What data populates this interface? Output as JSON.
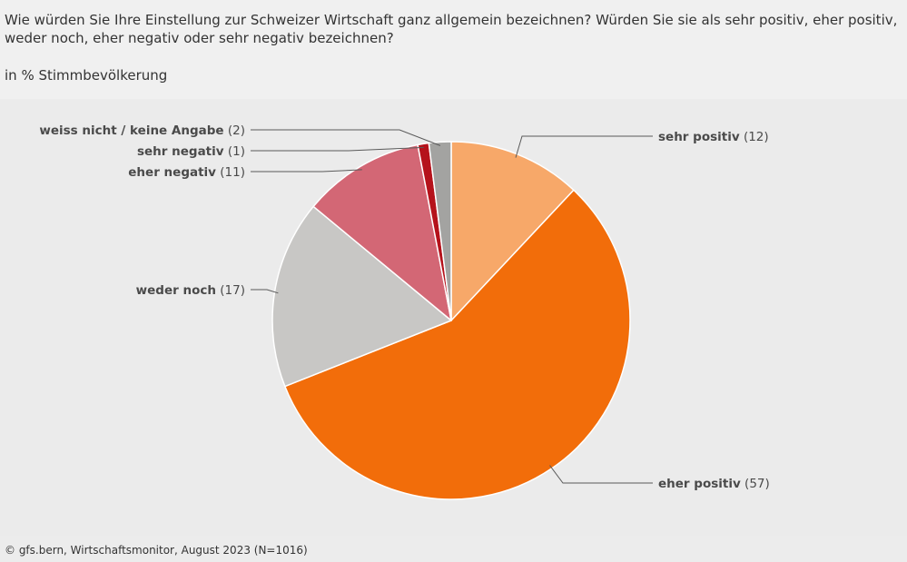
{
  "header": {
    "question": "Wie würden Sie Ihre Einstellung zur Schweizer Wirtschaft ganz allgemein bezeichnen? Würden Sie sie als sehr positiv, eher positiv, weder noch, eher negativ oder sehr negativ bezeichnen?",
    "subtitle": "in % Stimmbevölkerung"
  },
  "source": "© gfs.bern, Wirtschaftsmonitor, August 2023 (N=1016)",
  "chart_data": {
    "type": "pie",
    "title": "Wie würden Sie Ihre Einstellung zur Schweizer Wirtschaft ganz allgemein bezeichnen? Würden Sie sie als sehr positiv, eher positiv, weder noch, eher negativ oder sehr negativ bezeichnen?",
    "subtitle": "in % Stimmbevölkerung",
    "categories": [
      "sehr positiv",
      "eher positiv",
      "weder noch",
      "eher negativ",
      "sehr negativ",
      "weiss nicht / keine Angabe"
    ],
    "values": [
      12,
      57,
      17,
      11,
      1,
      2
    ],
    "colors": [
      "#f7a869",
      "#f26d0a",
      "#c8c7c5",
      "#d36775",
      "#b5121b",
      "#a3a3a1"
    ],
    "slices": [
      {
        "name": "sehr positiv",
        "value": 12,
        "value_text": "(12)",
        "color": "#f7a869"
      },
      {
        "name": "eher positiv",
        "value": 57,
        "value_text": "(57)",
        "color": "#f26d0a"
      },
      {
        "name": "weder noch",
        "value": 17,
        "value_text": "(17)",
        "color": "#c8c7c5"
      },
      {
        "name": "eher negativ",
        "value": 11,
        "value_text": "(11)",
        "color": "#d36775"
      },
      {
        "name": "sehr negativ",
        "value": 1,
        "value_text": "(1)",
        "color": "#b5121b"
      },
      {
        "name": "weiss nicht / keine Angabe",
        "value": 2,
        "value_text": "(2)",
        "color": "#a3a3a1"
      }
    ]
  }
}
